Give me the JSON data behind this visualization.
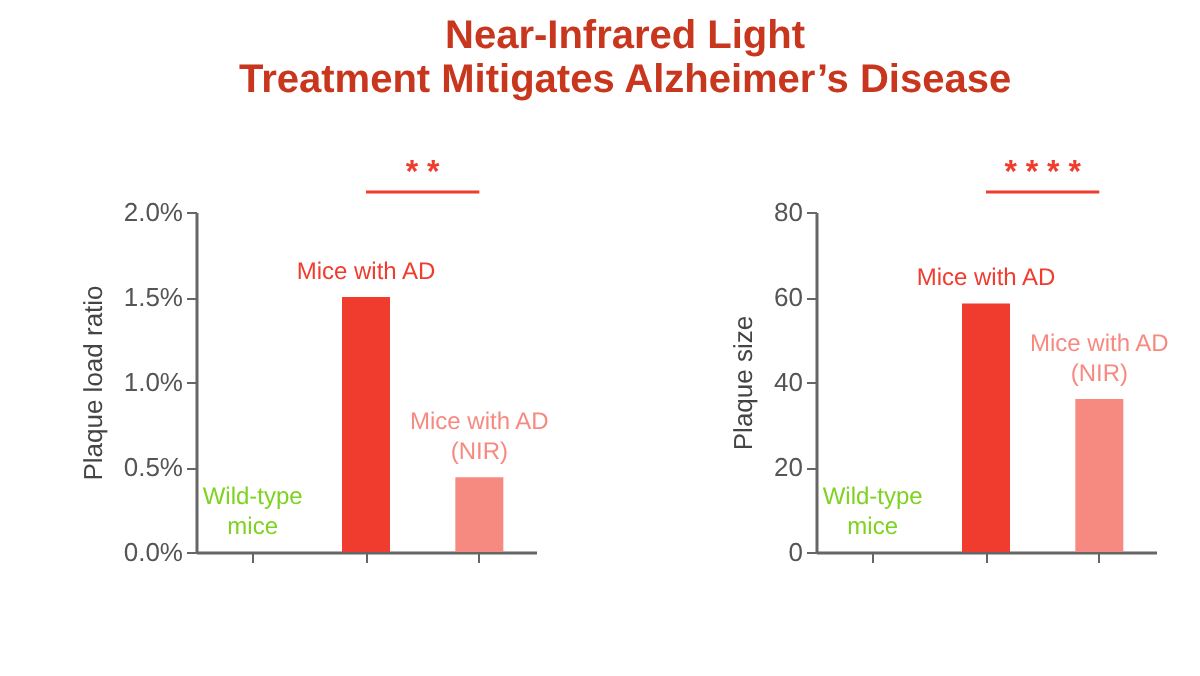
{
  "chart_data": [
    {
      "type": "bar",
      "title": "Near-Infrared Light\nTreatment Mitigates Alzheimer’s Disease",
      "ylabel": "Plaque load ratio",
      "categories": [
        "Wild-type\nmice",
        "Mice with AD",
        "Mice with AD\n(NIR)"
      ],
      "values": [
        0,
        1.5,
        0.44
      ],
      "colors": [
        "#7ed321",
        "#f03c2e",
        "#f78a80"
      ],
      "ylim": [
        0,
        2
      ],
      "yticks": [
        {
          "value": 0,
          "label": "0.0%"
        },
        {
          "value": 0.5,
          "label": "0.5%"
        },
        {
          "value": 1,
          "label": "1.0%"
        },
        {
          "value": 1.5,
          "label": "1.5%"
        },
        {
          "value": 2,
          "label": "2.0%"
        }
      ],
      "annotations": [
        "* *"
      ],
      "grid": false,
      "tick_labels": "y"
    },
    {
      "type": "bar",
      "ylabel": "Plaque size",
      "categories": [
        "Wild-type\nmice",
        "Mice with AD",
        "Mice with AD\n(NIR)"
      ],
      "values": [
        0,
        58.5,
        36
      ],
      "colors": [
        "#7ed321",
        "#f03c2e",
        "#f78a80"
      ],
      "ylim": [
        0,
        80
      ],
      "yticks": [
        0,
        20,
        40,
        60,
        80
      ],
      "annotations": [
        "* * * *"
      ],
      "grid": false,
      "tick_labels": "y"
    }
  ]
}
